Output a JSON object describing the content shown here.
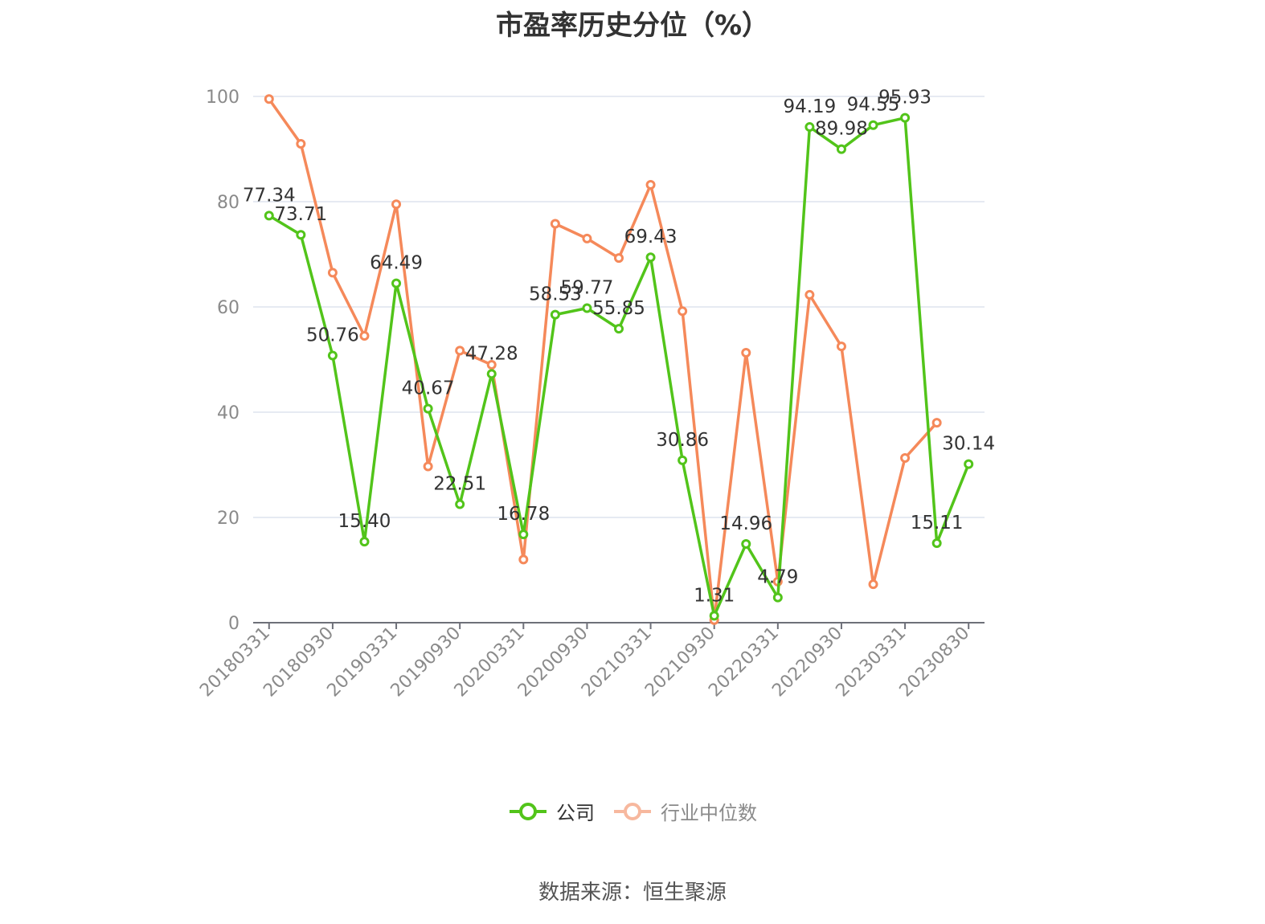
{
  "title": "市盈率历史分位（%）",
  "source": "数据来源：恒生聚源",
  "colors": {
    "company": "#52c41a",
    "industry": "#f5895a",
    "industry_legend": "#f7b89e",
    "grid": "#dde3ee",
    "axis": "#6e7079"
  },
  "chart_data": {
    "type": "line",
    "title": "市盈率历史分位（%）",
    "ylim": [
      0,
      100
    ],
    "yticks": [
      0,
      20,
      40,
      60,
      80,
      100
    ],
    "grid": true,
    "legend_position": "bottom",
    "x": [
      "20180331",
      "20180630",
      "20180930",
      "20181231",
      "20190331",
      "20190630",
      "20190930",
      "20191231",
      "20200331",
      "20200630",
      "20200930",
      "20201231",
      "20210331",
      "20210630",
      "20210930",
      "20211231",
      "20220331",
      "20220630",
      "20220930",
      "20221231",
      "20230331",
      "20230630",
      "20230830"
    ],
    "x_tick_labels": [
      "20180331",
      "20180930",
      "20190331",
      "20190930",
      "20200331",
      "20200930",
      "20210331",
      "20210930",
      "20220331",
      "20220930",
      "20230331",
      "20230830"
    ],
    "series": [
      {
        "name": "公司",
        "values": [
          77.34,
          73.71,
          50.76,
          15.4,
          64.49,
          40.67,
          22.51,
          47.28,
          16.78,
          58.53,
          59.77,
          55.85,
          69.43,
          30.86,
          1.31,
          14.96,
          4.79,
          94.19,
          89.98,
          94.55,
          95.93,
          15.11,
          30.14
        ],
        "labels": [
          "77.34",
          "73.71",
          "50.76",
          "15.40",
          "64.49",
          "40.67",
          "22.51",
          "47.28",
          "16.78",
          "58.53",
          "59.77",
          "55.85",
          "69.43",
          "30.86",
          "1.31",
          "14.96",
          "4.79",
          "94.19",
          "89.98",
          "94.55",
          "95.93",
          "15.11",
          "30.14"
        ]
      },
      {
        "name": "行业中位数",
        "values": [
          99.5,
          91,
          66.5,
          54.5,
          79.5,
          29.7,
          51.7,
          49,
          12,
          75.8,
          73,
          69.3,
          83.2,
          59.2,
          0.5,
          51.3,
          7.8,
          62.3,
          52.5,
          7.3,
          31.3,
          38,
          null
        ]
      }
    ]
  },
  "legend": {
    "company": "公司",
    "industry": "行业中位数"
  }
}
